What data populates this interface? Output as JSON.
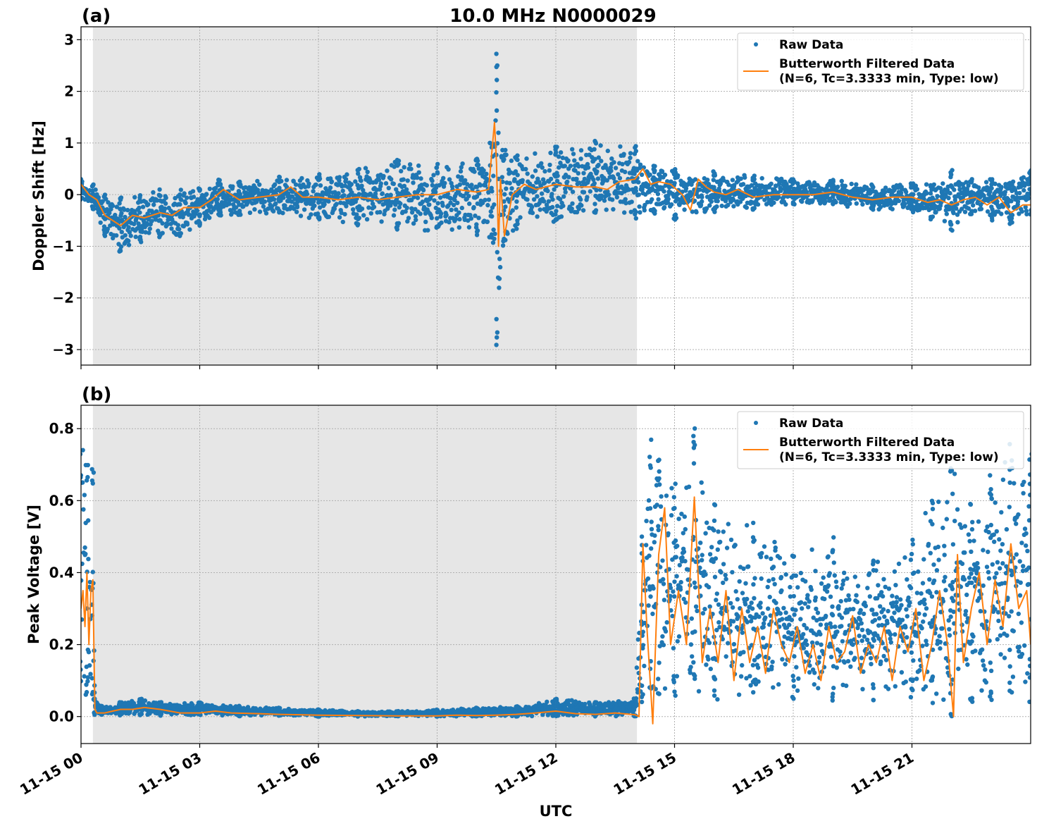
{
  "figure": {
    "title": "10.0 MHz N0000029",
    "xlabel": "UTC",
    "x_tick_labels": [
      "11-15 00",
      "11-15 03",
      "11-15 06",
      "11-15 09",
      "11-15 12",
      "11-15 15",
      "11-15 18",
      "11-15 21"
    ],
    "colors": {
      "raw": "#1f77b4",
      "filtered": "#ff7f0e",
      "night_shade": "#e6e6e6",
      "grid": "#b0b0b0"
    },
    "legend": {
      "raw_label": "Raw Data",
      "filtered_label_line1": "Butterworth Filtered Data",
      "filtered_label_line2": "(N=6, Tc=3.3333 min, Type: low)"
    }
  },
  "chart_data": [
    {
      "panel_label": "(a)",
      "type": "scatter",
      "ylabel": "Doppler Shift [Hz]",
      "xlim_hours": [
        0,
        24
      ],
      "ylim": [
        -3.3,
        3.25
      ],
      "yticks": [
        -3,
        -2,
        -1,
        0,
        1,
        2,
        3
      ],
      "ytick_labels": [
        "−3",
        "−2",
        "−1",
        "0",
        "1",
        "2",
        "3"
      ],
      "shaded_region_hours": [
        0.3,
        14.05
      ],
      "legend_position": "top-right",
      "grid": true,
      "series": [
        {
          "name": "Raw Data",
          "kind": "points",
          "band_note": "approx envelope",
          "x": [
            0.0,
            0.3,
            0.6,
            1.0,
            1.5,
            2.0,
            2.5,
            3.0,
            3.5,
            4.0,
            5.0,
            6.0,
            7.0,
            8.0,
            9.0,
            10.0,
            10.4,
            10.5,
            10.7,
            11.0,
            12.0,
            13.0,
            14.0,
            14.5,
            15.0,
            16.0,
            17.0,
            18.0,
            19.0,
            20.0,
            21.0,
            21.5,
            22.0,
            22.5,
            23.0,
            23.5,
            24.0
          ],
          "upper": [
            0.3,
            0.2,
            0.0,
            -0.05,
            0.0,
            0.1,
            0.1,
            0.15,
            0.3,
            0.25,
            0.35,
            0.4,
            0.5,
            0.7,
            0.6,
            0.8,
            1.2,
            3.0,
            0.9,
            0.8,
            1.0,
            1.1,
            1.0,
            0.6,
            0.5,
            0.45,
            0.4,
            0.3,
            0.3,
            0.2,
            0.25,
            0.2,
            0.5,
            0.3,
            0.3,
            0.3,
            0.5
          ],
          "lower": [
            -0.1,
            -0.3,
            -0.8,
            -1.1,
            -0.95,
            -0.85,
            -0.8,
            -0.6,
            -0.45,
            -0.4,
            -0.4,
            -0.5,
            -0.6,
            -0.7,
            -0.8,
            -0.8,
            -1.0,
            -3.0,
            -1.0,
            -0.7,
            -0.6,
            -0.4,
            -0.5,
            -0.4,
            -0.5,
            -0.4,
            -0.3,
            -0.2,
            -0.2,
            -0.3,
            -0.35,
            -0.5,
            -0.7,
            -0.4,
            -0.5,
            -0.6,
            -0.4
          ]
        },
        {
          "name": "Butterworth Filtered Data (N=6, Tc=3.3333 min, Type: low)",
          "kind": "line",
          "x": [
            0.0,
            0.2,
            0.4,
            0.6,
            0.8,
            1.0,
            1.3,
            1.6,
            2.0,
            2.3,
            2.6,
            3.0,
            3.3,
            3.6,
            4.0,
            4.5,
            5.0,
            5.3,
            5.6,
            6.0,
            6.5,
            7.0,
            7.5,
            8.0,
            8.5,
            9.0,
            9.5,
            10.0,
            10.3,
            10.45,
            10.5,
            10.55,
            10.6,
            10.7,
            10.9,
            11.2,
            11.5,
            12.0,
            12.5,
            13.0,
            13.3,
            13.6,
            14.0,
            14.2,
            14.4,
            14.6,
            14.9,
            15.2,
            15.4,
            15.6,
            15.8,
            16.0,
            16.3,
            16.6,
            17.0,
            17.5,
            18.0,
            18.5,
            19.0,
            19.5,
            20.0,
            20.5,
            21.0,
            21.4,
            21.7,
            22.0,
            22.3,
            22.6,
            22.9,
            23.2,
            23.5,
            23.8,
            24.0
          ],
          "y": [
            0.2,
            0.0,
            -0.1,
            -0.4,
            -0.5,
            -0.6,
            -0.4,
            -0.45,
            -0.35,
            -0.4,
            -0.25,
            -0.25,
            -0.1,
            0.1,
            -0.1,
            -0.05,
            0.0,
            0.15,
            -0.05,
            -0.05,
            -0.1,
            -0.05,
            -0.1,
            -0.05,
            0.0,
            0.0,
            0.1,
            0.05,
            0.1,
            1.4,
            0.6,
            -1.0,
            0.3,
            -0.8,
            0.0,
            0.2,
            0.1,
            0.2,
            0.15,
            0.15,
            0.1,
            0.25,
            0.3,
            0.5,
            0.2,
            0.25,
            0.2,
            0.0,
            -0.3,
            0.3,
            0.15,
            0.05,
            0.0,
            0.1,
            -0.05,
            0.0,
            0.0,
            0.0,
            0.05,
            -0.05,
            -0.1,
            -0.05,
            -0.05,
            -0.15,
            -0.1,
            -0.2,
            -0.1,
            -0.05,
            -0.2,
            -0.05,
            -0.35,
            -0.2,
            -0.2
          ]
        }
      ]
    },
    {
      "panel_label": "(b)",
      "type": "scatter",
      "ylabel": "Peak Voltage [V]",
      "xlim_hours": [
        0,
        24
      ],
      "ylim": [
        -0.075,
        0.865
      ],
      "yticks": [
        0.0,
        0.2,
        0.4,
        0.6,
        0.8
      ],
      "ytick_labels": [
        "0.0",
        "0.2",
        "0.4",
        "0.6",
        "0.8"
      ],
      "shaded_region_hours": [
        0.3,
        14.05
      ],
      "legend_position": "top-right",
      "grid": true,
      "series": [
        {
          "name": "Raw Data",
          "kind": "points",
          "band_note": "approx envelope",
          "x": [
            0.0,
            0.15,
            0.3,
            0.35,
            0.5,
            1.0,
            1.5,
            2.0,
            3.0,
            4.0,
            5.0,
            6.0,
            7.0,
            8.0,
            9.0,
            10.0,
            11.0,
            12.0,
            13.0,
            14.0,
            14.2,
            14.4,
            14.6,
            15.0,
            15.5,
            16.0,
            17.0,
            18.0,
            19.0,
            20.0,
            21.0,
            21.5,
            22.0,
            22.5,
            23.0,
            23.5,
            24.0
          ],
          "upper": [
            0.77,
            0.7,
            0.7,
            0.05,
            0.03,
            0.04,
            0.05,
            0.04,
            0.04,
            0.03,
            0.025,
            0.02,
            0.015,
            0.015,
            0.02,
            0.025,
            0.03,
            0.05,
            0.04,
            0.05,
            0.5,
            0.8,
            0.75,
            0.65,
            0.82,
            0.6,
            0.55,
            0.45,
            0.5,
            0.45,
            0.5,
            0.6,
            0.7,
            0.6,
            0.7,
            0.78,
            0.75
          ],
          "lower": [
            0.05,
            0.04,
            0.02,
            0.005,
            0.005,
            0.003,
            0.003,
            0.002,
            0.002,
            0.001,
            0.001,
            0.0,
            0.0,
            0.0,
            0.0,
            0.0,
            0.0,
            0.0,
            0.0,
            0.0,
            0.02,
            0.05,
            0.05,
            0.05,
            0.04,
            0.03,
            0.04,
            0.04,
            0.04,
            0.04,
            0.04,
            0.03,
            0.0,
            0.03,
            0.04,
            0.04,
            0.04
          ]
        },
        {
          "name": "Butterworth Filtered Data (N=6, Tc=3.3333 min, Type: low)",
          "kind": "line",
          "x": [
            0.0,
            0.05,
            0.1,
            0.15,
            0.2,
            0.25,
            0.3,
            0.35,
            0.4,
            0.6,
            0.8,
            1.0,
            1.3,
            1.6,
            2.0,
            2.5,
            3.0,
            3.4,
            3.8,
            4.5,
            5.0,
            5.5,
            6.0,
            7.0,
            8.0,
            9.0,
            9.5,
            10.0,
            10.5,
            11.0,
            11.5,
            12.0,
            12.5,
            13.0,
            13.5,
            14.0,
            14.1,
            14.2,
            14.3,
            14.45,
            14.6,
            14.75,
            14.9,
            15.1,
            15.3,
            15.5,
            15.7,
            15.9,
            16.1,
            16.3,
            16.5,
            16.7,
            16.9,
            17.1,
            17.3,
            17.5,
            17.7,
            17.9,
            18.1,
            18.3,
            18.5,
            18.7,
            18.9,
            19.1,
            19.3,
            19.5,
            19.7,
            19.9,
            20.1,
            20.3,
            20.5,
            20.7,
            20.9,
            21.1,
            21.3,
            21.5,
            21.7,
            21.9,
            22.05,
            22.15,
            22.3,
            22.5,
            22.7,
            22.9,
            23.1,
            23.3,
            23.5,
            23.7,
            23.9,
            24.0
          ],
          "y": [
            0.3,
            0.35,
            0.25,
            0.4,
            0.2,
            0.35,
            0.38,
            0.02,
            0.01,
            0.01,
            0.015,
            0.02,
            0.02,
            0.025,
            0.02,
            0.01,
            0.01,
            0.015,
            0.01,
            0.008,
            0.006,
            0.005,
            0.004,
            0.003,
            0.002,
            0.002,
            0.004,
            0.003,
            0.004,
            0.006,
            0.01,
            0.015,
            0.008,
            0.006,
            0.01,
            0.005,
            0.0,
            0.48,
            0.25,
            -0.02,
            0.45,
            0.58,
            0.2,
            0.35,
            0.2,
            0.61,
            0.15,
            0.3,
            0.15,
            0.35,
            0.1,
            0.3,
            0.15,
            0.25,
            0.12,
            0.3,
            0.2,
            0.15,
            0.25,
            0.12,
            0.2,
            0.1,
            0.25,
            0.15,
            0.18,
            0.28,
            0.12,
            0.2,
            0.15,
            0.25,
            0.1,
            0.25,
            0.18,
            0.3,
            0.1,
            0.2,
            0.35,
            0.2,
            0.0,
            0.45,
            0.15,
            0.3,
            0.4,
            0.2,
            0.38,
            0.25,
            0.48,
            0.3,
            0.35,
            0.2
          ]
        }
      ]
    }
  ]
}
